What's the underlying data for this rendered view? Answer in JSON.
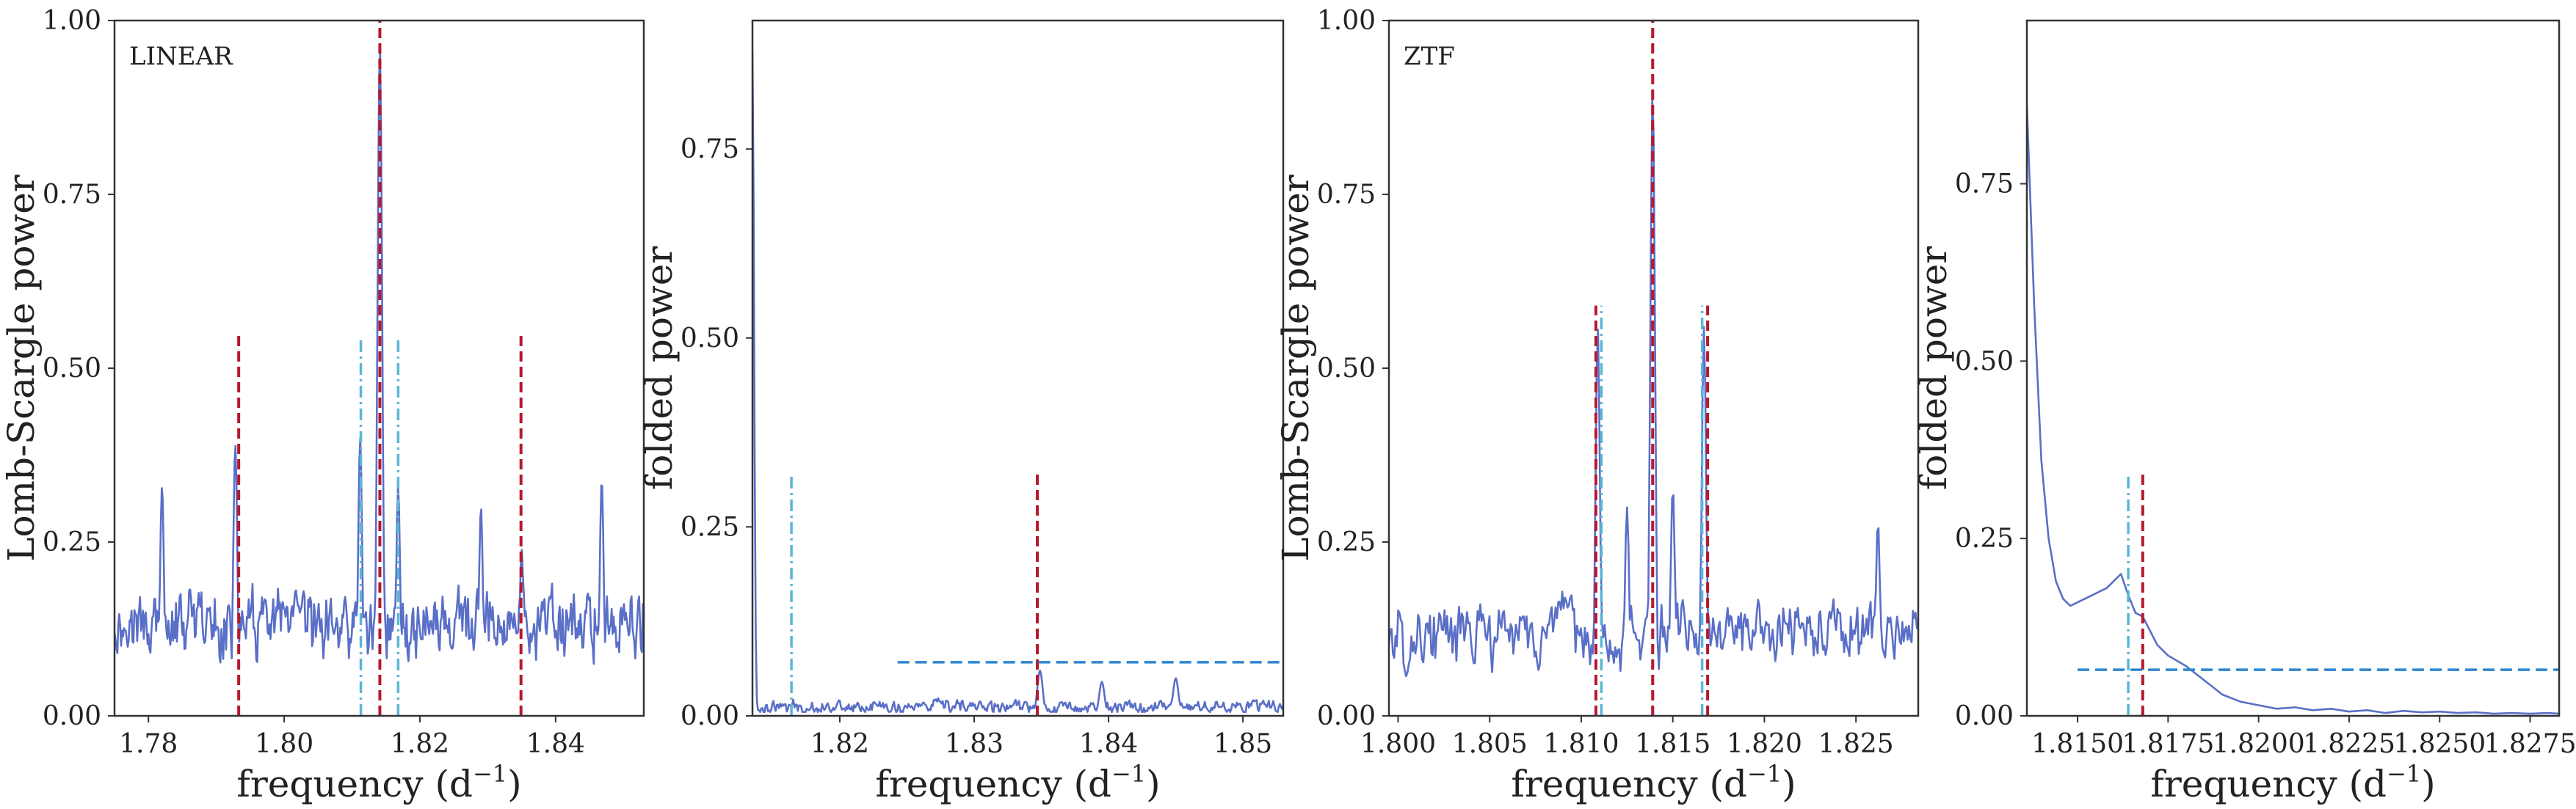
{
  "chart_data": [
    {
      "type": "line",
      "panel_tag": "LINEAR",
      "xlabel": "frequency (d",
      "xlabel_sup": "−1",
      "xlabel_end": ")",
      "ylabel": "Lomb-Scargle power",
      "xlim": [
        1.775,
        1.853
      ],
      "ylim": [
        0,
        1.0
      ],
      "xticks": [
        "1.78",
        "1.80",
        "1.82",
        "1.84"
      ],
      "yticks": [
        "0.00",
        "0.25",
        "0.50",
        "0.75",
        "1.00"
      ],
      "xtick_values": [
        1.78,
        1.8,
        1.82,
        1.84
      ],
      "ytick_values": [
        0,
        0.25,
        0.5,
        0.75,
        1.0
      ],
      "noise": {
        "base": 0.13,
        "amp": 0.065,
        "n": 560
      },
      "peaks": [
        {
          "x": 1.8141,
          "y": 0.96,
          "w": 0.00035
        },
        {
          "x": 1.7928,
          "y": 0.39,
          "w": 0.0003
        },
        {
          "x": 1.8112,
          "y": 0.4,
          "w": 0.0003
        },
        {
          "x": 1.8168,
          "y": 0.33,
          "w": 0.0003
        },
        {
          "x": 1.835,
          "y": 0.24,
          "w": 0.0003
        },
        {
          "x": 1.8468,
          "y": 0.34,
          "w": 0.0003
        },
        {
          "x": 1.782,
          "y": 0.33,
          "w": 0.0003
        },
        {
          "x": 1.829,
          "y": 0.3,
          "w": 0.0003
        }
      ],
      "vlines": [
        {
          "x": 1.8141,
          "y0": 0,
          "y1": 1.0,
          "style": "red-dashed"
        },
        {
          "x": 1.7933,
          "y0": 0,
          "y1": 0.55,
          "style": "red-dashed"
        },
        {
          "x": 1.8349,
          "y0": 0,
          "y1": 0.55,
          "style": "red-dashed"
        },
        {
          "x": 1.8113,
          "y0": 0,
          "y1": 0.545,
          "style": "cyan-dashdot"
        },
        {
          "x": 1.8168,
          "y0": 0,
          "y1": 0.545,
          "style": "cyan-dashdot"
        }
      ],
      "hlines": []
    },
    {
      "type": "line",
      "panel_tag": "",
      "xlabel": "frequency (d",
      "xlabel_sup": "−1",
      "xlabel_end": ")",
      "ylabel": "folded power",
      "xlim": [
        1.8135,
        1.853
      ],
      "ylim": [
        0,
        0.92
      ],
      "xticks": [
        "1.82",
        "1.83",
        "1.84",
        "1.85"
      ],
      "yticks": [
        "0.00",
        "0.25",
        "0.50",
        "0.75"
      ],
      "xtick_values": [
        1.82,
        1.83,
        1.84,
        1.85
      ],
      "ytick_values": [
        0,
        0.25,
        0.5,
        0.75
      ],
      "noise": {
        "base": 0.012,
        "amp": 0.012,
        "n": 480
      },
      "peaks": [
        {
          "x": 1.8135,
          "y": 0.88,
          "w": 0.00012
        },
        {
          "x": 1.8349,
          "y": 0.06,
          "w": 0.0002
        },
        {
          "x": 1.845,
          "y": 0.05,
          "w": 0.0002
        },
        {
          "x": 1.8395,
          "y": 0.045,
          "w": 0.0002
        }
      ],
      "vlines": [
        {
          "x": 1.8164,
          "y0": 0,
          "y1": 0.32,
          "style": "cyan-dashdot"
        },
        {
          "x": 1.8347,
          "y0": 0,
          "y1": 0.32,
          "style": "red-dashed"
        }
      ],
      "hlines": [
        {
          "y": 0.071,
          "x0": 1.8243,
          "x1": 1.8528,
          "style": "blue-dashed"
        }
      ]
    },
    {
      "type": "line",
      "panel_tag": "ZTF",
      "xlabel": "frequency (d",
      "xlabel_sup": "−1",
      "xlabel_end": ")",
      "ylabel": "Lomb-Scargle power",
      "xlim": [
        1.7995,
        1.8284
      ],
      "ylim": [
        0,
        1.0
      ],
      "xticks": [
        "1.800",
        "1.805",
        "1.810",
        "1.815",
        "1.820",
        "1.825"
      ],
      "yticks": [
        "0.00",
        "0.25",
        "0.50",
        "0.75",
        "1.00"
      ],
      "xtick_values": [
        1.8,
        1.805,
        1.81,
        1.815,
        1.82,
        1.825
      ],
      "ytick_values": [
        0,
        0.25,
        0.5,
        0.75,
        1.0
      ],
      "noise": {
        "base": 0.115,
        "amp": 0.065,
        "n": 400
      },
      "peaks": [
        {
          "x": 1.8139,
          "y": 0.9,
          "w": 0.00013
        },
        {
          "x": 1.8109,
          "y": 0.56,
          "w": 0.00012
        },
        {
          "x": 1.8167,
          "y": 0.56,
          "w": 0.00012
        },
        {
          "x": 1.815,
          "y": 0.33,
          "w": 0.00012
        },
        {
          "x": 1.8125,
          "y": 0.3,
          "w": 0.00012
        },
        {
          "x": 1.8262,
          "y": 0.28,
          "w": 0.00012
        }
      ],
      "vlines": [
        {
          "x": 1.8139,
          "y0": 0,
          "y1": 1.0,
          "style": "red-dashed"
        },
        {
          "x": 1.8108,
          "y0": 0,
          "y1": 0.59,
          "style": "red-dashed"
        },
        {
          "x": 1.8169,
          "y0": 0,
          "y1": 0.59,
          "style": "red-dashed"
        },
        {
          "x": 1.8111,
          "y0": 0,
          "y1": 0.59,
          "style": "cyan-dashdot"
        },
        {
          "x": 1.8166,
          "y0": 0,
          "y1": 0.59,
          "style": "cyan-dashdot"
        }
      ],
      "hlines": []
    },
    {
      "type": "line",
      "panel_tag": "",
      "xlabel": "frequency (d",
      "xlabel_sup": "−1",
      "xlabel_end": ")",
      "ylabel": "folded power",
      "xlim": [
        1.8136,
        1.8283
      ],
      "ylim": [
        0,
        0.98
      ],
      "xticks": [
        "1.8150",
        "1.8175",
        "1.8200",
        "1.8225",
        "1.8250",
        "1.8275"
      ],
      "yticks": [
        "0.00",
        "0.25",
        "0.50",
        "0.75"
      ],
      "xtick_values": [
        1.815,
        1.8175,
        1.82,
        1.8225,
        1.825,
        1.8275
      ],
      "ytick_values": [
        0,
        0.25,
        0.5,
        0.75
      ],
      "series": [
        {
          "x": [
            1.8136,
            1.8138,
            1.814,
            1.8142,
            1.8144,
            1.8146,
            1.8148,
            1.815,
            1.8152,
            1.8154,
            1.8156,
            1.8158,
            1.816,
            1.8162,
            1.8164,
            1.8166,
            1.8168,
            1.817,
            1.8172,
            1.8175,
            1.818,
            1.8185,
            1.819,
            1.8195,
            1.82,
            1.8205,
            1.821,
            1.8215,
            1.822,
            1.8225,
            1.823,
            1.8235,
            1.824,
            1.8245,
            1.825,
            1.8255,
            1.826,
            1.8265,
            1.827,
            1.8275,
            1.828,
            1.8283
          ],
          "y": [
            0.86,
            0.58,
            0.36,
            0.25,
            0.19,
            0.165,
            0.155,
            0.16,
            0.165,
            0.17,
            0.175,
            0.18,
            0.19,
            0.2,
            0.17,
            0.145,
            0.14,
            0.12,
            0.1,
            0.085,
            0.07,
            0.05,
            0.03,
            0.02,
            0.015,
            0.01,
            0.012,
            0.008,
            0.01,
            0.006,
            0.008,
            0.004,
            0.007,
            0.005,
            0.006,
            0.004,
            0.005,
            0.003,
            0.004,
            0.003,
            0.004,
            0.003
          ]
        }
      ],
      "vlines": [
        {
          "x": 1.8164,
          "y0": 0,
          "y1": 0.34,
          "style": "cyan-dashdot"
        },
        {
          "x": 1.8168,
          "y0": 0,
          "y1": 0.34,
          "style": "red-dashed"
        }
      ],
      "hlines": [
        {
          "y": 0.065,
          "x0": 1.815,
          "x1": 1.8283,
          "style": "blue-dashed"
        }
      ]
    }
  ],
  "colors": {
    "curve": "#5a6fc7",
    "red_line": "#b5192e",
    "cyan_line": "#5bb6d6",
    "blue_hline": "#2f86cf",
    "frame": "#333333"
  }
}
